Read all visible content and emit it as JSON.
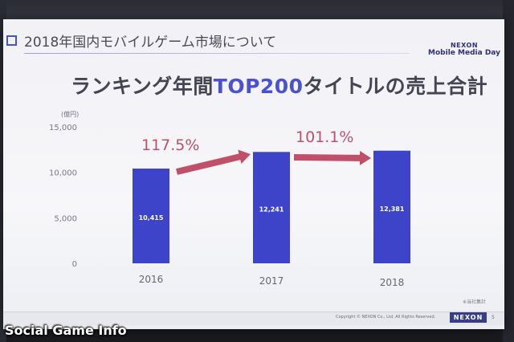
{
  "slide": {
    "section_title": "2018年国内モバイルゲーム市場について",
    "brand_line1": "NEXON",
    "brand_line2": "Mobile Media Day",
    "title_part1": "ランキング年間",
    "title_highlight": "TOP200",
    "title_part2": "タイトルの売上合計",
    "unit_label": "(億円)",
    "note": "※当社集計",
    "copyright": "Copyright © NEXON Co., Ltd. All Rights Reserved.",
    "footer_logo": "NEXON",
    "page_number": "5"
  },
  "watermark": "Social Game Info",
  "colors": {
    "bar": "#3d44c9",
    "arrow": "#c0506a",
    "accent": "#4b52d0"
  },
  "chart_data": {
    "type": "bar",
    "categories": [
      "2016",
      "2017",
      "2018"
    ],
    "values": [
      10415,
      12241,
      12381
    ],
    "value_labels": [
      "10,415",
      "12,241",
      "12,381"
    ],
    "ylim": [
      0,
      15000
    ],
    "yticks": [
      0,
      5000,
      10000,
      15000
    ],
    "ytick_labels": [
      "0",
      "5,000",
      "10,000",
      "15,000"
    ],
    "ylabel": "(億円)",
    "xlabel": "",
    "grid": false,
    "growth_annotations": [
      {
        "from": "2016",
        "to": "2017",
        "label": "117.5%"
      },
      {
        "from": "2017",
        "to": "2018",
        "label": "101.1%"
      }
    ]
  }
}
